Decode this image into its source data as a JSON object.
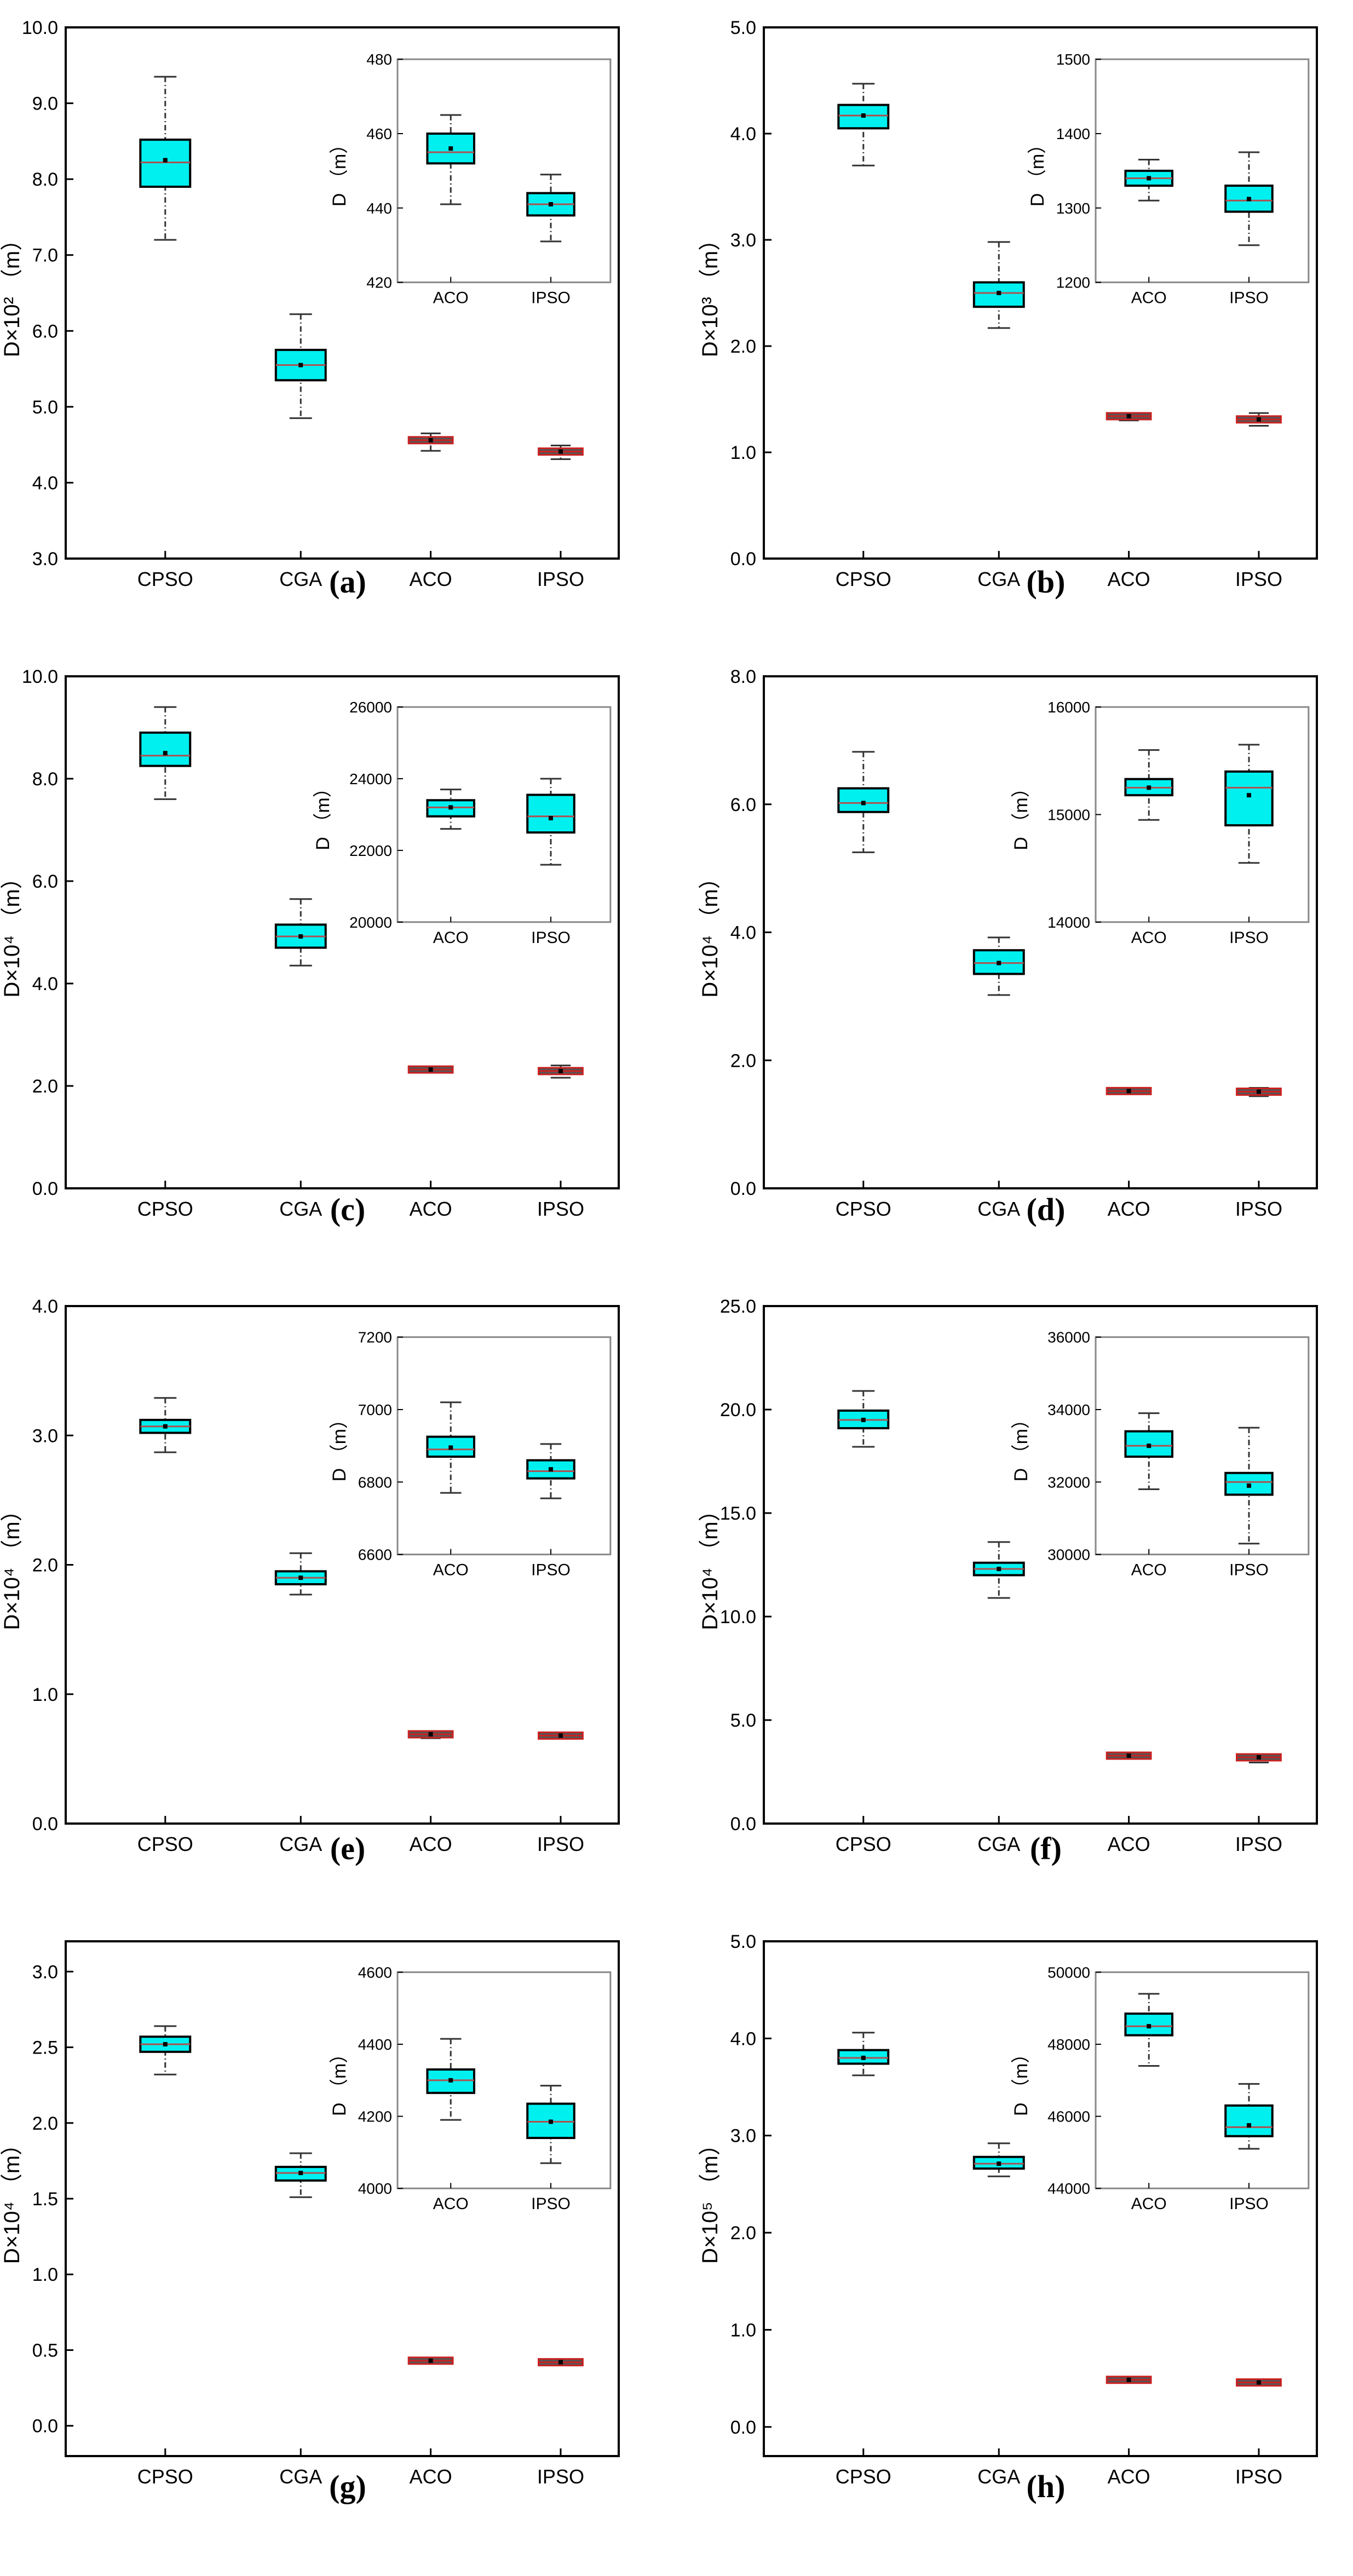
{
  "figure": {
    "description_label": "Box plots of D for CPSO, CGA, ACO and IPSO"
  },
  "chart_data": [
    {
      "panel": "(a)",
      "type": "box",
      "ylabel": "D×10² （m）",
      "ylim": [
        3.0,
        10.0
      ],
      "yticks": [
        3.0,
        4.0,
        5.0,
        6.0,
        7.0,
        8.0,
        9.0,
        10.0
      ],
      "categories": [
        "CPSO",
        "CGA",
        "ACO",
        "IPSO"
      ],
      "boxes": [
        {
          "min": 7.2,
          "q1": 7.9,
          "median": 8.22,
          "mean": 8.25,
          "q3": 8.52,
          "max": 9.35
        },
        {
          "min": 4.85,
          "q1": 5.35,
          "median": 5.55,
          "mean": 5.55,
          "q3": 5.75,
          "max": 6.22
        },
        {
          "min": 4.42,
          "q1": 4.52,
          "median": 4.56,
          "mean": 4.56,
          "q3": 4.61,
          "max": 4.65
        },
        {
          "min": 4.31,
          "q1": 4.37,
          "median": 4.41,
          "mean": 4.41,
          "q3": 4.45,
          "max": 4.49
        }
      ],
      "inset": {
        "ylabel": "D （m）",
        "ylim": [
          420,
          480
        ],
        "yticks": [
          420,
          440,
          460,
          480
        ],
        "categories": [
          "ACO",
          "IPSO"
        ],
        "boxes": [
          {
            "min": 441,
            "q1": 452,
            "median": 455,
            "mean": 456,
            "q3": 460,
            "max": 465
          },
          {
            "min": 431,
            "q1": 438,
            "median": 441,
            "mean": 441,
            "q3": 444,
            "max": 449
          }
        ]
      }
    },
    {
      "panel": "(b)",
      "type": "box",
      "ylabel": "D×10³ （m）",
      "ylim": [
        0.0,
        5.0
      ],
      "yticks": [
        0.0,
        1.0,
        2.0,
        3.0,
        4.0,
        5.0
      ],
      "categories": [
        "CPSO",
        "CGA",
        "ACO",
        "IPSO"
      ],
      "boxes": [
        {
          "min": 3.7,
          "q1": 4.05,
          "median": 4.17,
          "mean": 4.17,
          "q3": 4.27,
          "max": 4.47
        },
        {
          "min": 2.17,
          "q1": 2.37,
          "median": 2.5,
          "mean": 2.5,
          "q3": 2.6,
          "max": 2.98
        },
        {
          "min": 1.3,
          "q1": 1.32,
          "median": 1.34,
          "mean": 1.34,
          "q3": 1.35,
          "max": 1.37
        },
        {
          "min": 1.25,
          "q1": 1.29,
          "median": 1.31,
          "mean": 1.31,
          "q3": 1.33,
          "max": 1.37
        }
      ],
      "inset": {
        "ylabel": "D （m）",
        "ylim": [
          1200,
          1500
        ],
        "yticks": [
          1200,
          1300,
          1400,
          1500
        ],
        "categories": [
          "ACO",
          "IPSO"
        ],
        "boxes": [
          {
            "min": 1310,
            "q1": 1330,
            "median": 1340,
            "mean": 1340,
            "q3": 1350,
            "max": 1365
          },
          {
            "min": 1250,
            "q1": 1295,
            "median": 1310,
            "mean": 1312,
            "q3": 1330,
            "max": 1375
          }
        ]
      }
    },
    {
      "panel": "(c)",
      "type": "box",
      "ylabel": "D×10⁴ （m）",
      "ylim": [
        0.0,
        10.0
      ],
      "yticks": [
        0.0,
        2.0,
        4.0,
        6.0,
        8.0,
        10.0
      ],
      "categories": [
        "CPSO",
        "CGA",
        "ACO",
        "IPSO"
      ],
      "boxes": [
        {
          "min": 7.6,
          "q1": 8.25,
          "median": 8.45,
          "mean": 8.5,
          "q3": 8.9,
          "max": 9.4
        },
        {
          "min": 4.35,
          "q1": 4.7,
          "median": 4.92,
          "mean": 4.92,
          "q3": 5.15,
          "max": 5.65
        },
        {
          "min": 2.26,
          "q1": 2.29,
          "median": 2.32,
          "mean": 2.32,
          "q3": 2.34,
          "max": 2.36
        },
        {
          "min": 2.16,
          "q1": 2.25,
          "median": 2.29,
          "mean": 2.29,
          "q3": 2.35,
          "max": 2.4
        }
      ],
      "inset": {
        "ylabel": "D （m）",
        "ylim": [
          20000,
          26000
        ],
        "yticks": [
          20000,
          22000,
          24000,
          26000
        ],
        "categories": [
          "ACO",
          "IPSO"
        ],
        "boxes": [
          {
            "min": 22600,
            "q1": 22950,
            "median": 23200,
            "mean": 23200,
            "q3": 23400,
            "max": 23700
          },
          {
            "min": 21600,
            "q1": 22500,
            "median": 22950,
            "mean": 22900,
            "q3": 23550,
            "max": 24000
          }
        ]
      }
    },
    {
      "panel": "(d)",
      "type": "box",
      "ylabel": "D×10⁴ （m）",
      "ylim": [
        0.0,
        8.0
      ],
      "yticks": [
        0.0,
        2.0,
        4.0,
        6.0,
        8.0
      ],
      "categories": [
        "CPSO",
        "CGA",
        "ACO",
        "IPSO"
      ],
      "boxes": [
        {
          "min": 5.25,
          "q1": 5.88,
          "median": 6.02,
          "mean": 6.02,
          "q3": 6.25,
          "max": 6.82
        },
        {
          "min": 3.02,
          "q1": 3.35,
          "median": 3.52,
          "mean": 3.52,
          "q3": 3.72,
          "max": 3.92
        },
        {
          "min": 1.48,
          "q1": 1.5,
          "median": 1.52,
          "mean": 1.52,
          "q3": 1.54,
          "max": 1.56
        },
        {
          "min": 1.44,
          "q1": 1.48,
          "median": 1.51,
          "mean": 1.51,
          "q3": 1.54,
          "max": 1.57
        }
      ],
      "inset": {
        "ylabel": "D （m）",
        "ylim": [
          14000,
          16000
        ],
        "yticks": [
          14000,
          15000,
          16000
        ],
        "categories": [
          "ACO",
          "IPSO"
        ],
        "boxes": [
          {
            "min": 14950,
            "q1": 15180,
            "median": 15250,
            "mean": 15250,
            "q3": 15330,
            "max": 15600
          },
          {
            "min": 14550,
            "q1": 14900,
            "median": 15250,
            "mean": 15180,
            "q3": 15400,
            "max": 15650
          }
        ]
      }
    },
    {
      "panel": "(e)",
      "type": "box",
      "ylabel": "D×10⁴ （m）",
      "ylim": [
        0.0,
        4.0
      ],
      "yticks": [
        0.0,
        1.0,
        2.0,
        3.0,
        4.0
      ],
      "categories": [
        "CPSO",
        "CGA",
        "ACO",
        "IPSO"
      ],
      "boxes": [
        {
          "min": 2.87,
          "q1": 3.02,
          "median": 3.07,
          "mean": 3.07,
          "q3": 3.12,
          "max": 3.29
        },
        {
          "min": 1.77,
          "q1": 1.85,
          "median": 1.9,
          "mean": 1.9,
          "q3": 1.95,
          "max": 2.09
        },
        {
          "min": 0.66,
          "q1": 0.68,
          "median": 0.69,
          "mean": 0.69,
          "q3": 0.7,
          "max": 0.71
        },
        {
          "min": 0.66,
          "q1": 0.675,
          "median": 0.68,
          "mean": 0.68,
          "q3": 0.69,
          "max": 0.7
        }
      ],
      "inset": {
        "ylabel": "D （m）",
        "ylim": [
          6600,
          7200
        ],
        "yticks": [
          6600,
          6800,
          7000,
          7200
        ],
        "categories": [
          "ACO",
          "IPSO"
        ],
        "boxes": [
          {
            "min": 6770,
            "q1": 6870,
            "median": 6890,
            "mean": 6895,
            "q3": 6925,
            "max": 7020
          },
          {
            "min": 6755,
            "q1": 6810,
            "median": 6830,
            "mean": 6835,
            "q3": 6860,
            "max": 6905
          }
        ]
      }
    },
    {
      "panel": "(f)",
      "type": "box",
      "ylabel": "D×10⁴ （m）",
      "ylim": [
        0.0,
        25.0
      ],
      "yticks": [
        0.0,
        5.0,
        10.0,
        15.0,
        20.0,
        25.0
      ],
      "categories": [
        "CPSO",
        "CGA",
        "ACO",
        "IPSO"
      ],
      "boxes": [
        {
          "min": 18.2,
          "q1": 19.1,
          "median": 19.5,
          "mean": 19.5,
          "q3": 19.95,
          "max": 20.9
        },
        {
          "min": 10.9,
          "q1": 12.0,
          "median": 12.3,
          "mean": 12.3,
          "q3": 12.6,
          "max": 13.6
        },
        {
          "min": 3.15,
          "q1": 3.22,
          "median": 3.28,
          "mean": 3.28,
          "q3": 3.32,
          "max": 3.4
        },
        {
          "min": 2.95,
          "q1": 3.1,
          "median": 3.2,
          "mean": 3.2,
          "q3": 3.28,
          "max": 3.35
        }
      ],
      "inset": {
        "ylabel": "D （m）",
        "ylim": [
          30000,
          36000
        ],
        "yticks": [
          30000,
          32000,
          34000,
          36000
        ],
        "categories": [
          "ACO",
          "IPSO"
        ],
        "boxes": [
          {
            "min": 31800,
            "q1": 32700,
            "median": 33000,
            "mean": 33000,
            "q3": 33400,
            "max": 33900
          },
          {
            "min": 30300,
            "q1": 31650,
            "median": 32000,
            "mean": 31900,
            "q3": 32250,
            "max": 33500
          }
        ]
      }
    },
    {
      "panel": "(g)",
      "type": "box",
      "ylabel": "D×10⁴ （m）",
      "ylim": [
        -0.2,
        3.2
      ],
      "yticks": [
        0.0,
        0.5,
        1.0,
        1.5,
        2.0,
        2.5,
        3.0
      ],
      "categories": [
        "CPSO",
        "CGA",
        "ACO",
        "IPSO"
      ],
      "boxes": [
        {
          "min": 2.32,
          "q1": 2.47,
          "median": 2.52,
          "mean": 2.52,
          "q3": 2.57,
          "max": 2.64
        },
        {
          "min": 1.51,
          "q1": 1.62,
          "median": 1.67,
          "mean": 1.67,
          "q3": 1.71,
          "max": 1.8
        },
        {
          "min": 0.41,
          "q1": 0.42,
          "median": 0.43,
          "mean": 0.43,
          "q3": 0.44,
          "max": 0.45
        },
        {
          "min": 0.4,
          "q1": 0.41,
          "median": 0.42,
          "mean": 0.42,
          "q3": 0.425,
          "max": 0.43
        }
      ],
      "inset": {
        "ylabel": "D （m）",
        "ylim": [
          4000,
          4600
        ],
        "yticks": [
          4000,
          4200,
          4400,
          4600
        ],
        "categories": [
          "ACO",
          "IPSO"
        ],
        "boxes": [
          {
            "min": 4190,
            "q1": 4265,
            "median": 4300,
            "mean": 4300,
            "q3": 4330,
            "max": 4415
          },
          {
            "min": 4070,
            "q1": 4140,
            "median": 4185,
            "mean": 4185,
            "q3": 4235,
            "max": 4285
          }
        ]
      }
    },
    {
      "panel": "(h)",
      "type": "box",
      "ylabel": "D×10⁵ （m）",
      "ylim": [
        -0.3,
        5.0
      ],
      "yticks": [
        0.0,
        1.0,
        2.0,
        3.0,
        4.0,
        5.0
      ],
      "categories": [
        "CPSO",
        "CGA",
        "ACO",
        "IPSO"
      ],
      "boxes": [
        {
          "min": 3.62,
          "q1": 3.74,
          "median": 3.8,
          "mean": 3.8,
          "q3": 3.88,
          "max": 4.06
        },
        {
          "min": 2.58,
          "q1": 2.66,
          "median": 2.71,
          "mean": 2.71,
          "q3": 2.78,
          "max": 2.92
        },
        {
          "min": 0.47,
          "q1": 0.48,
          "median": 0.485,
          "mean": 0.485,
          "q3": 0.49,
          "max": 0.5
        },
        {
          "min": 0.445,
          "q1": 0.452,
          "median": 0.458,
          "mean": 0.458,
          "q3": 0.463,
          "max": 0.47
        }
      ],
      "inset": {
        "ylabel": "D （m）",
        "ylim": [
          44000,
          50000
        ],
        "yticks": [
          44000,
          46000,
          48000,
          50000
        ],
        "categories": [
          "ACO",
          "IPSO"
        ],
        "boxes": [
          {
            "min": 47400,
            "q1": 48250,
            "median": 48500,
            "mean": 48500,
            "q3": 48850,
            "max": 49400
          },
          {
            "min": 45100,
            "q1": 45450,
            "median": 45700,
            "mean": 45750,
            "q3": 46300,
            "max": 46900
          }
        ]
      }
    }
  ],
  "style": {
    "box_fill": "#00f0f0",
    "box_stroke": "#000000",
    "small_box_stroke": "#cc2020",
    "axis_color": "#000000",
    "inset_frame": "#888888",
    "whisker_color": "#333333"
  }
}
